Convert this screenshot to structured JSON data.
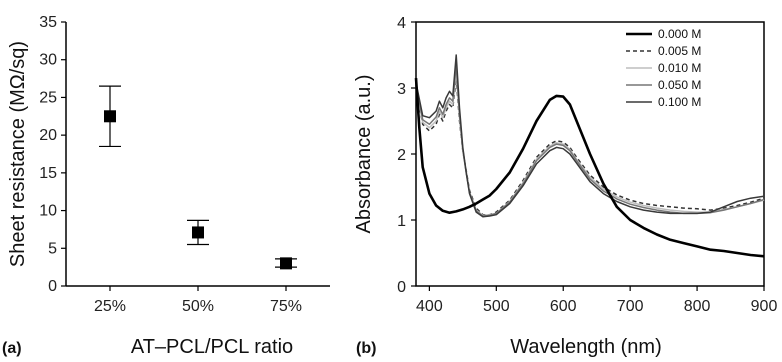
{
  "chart_data": [
    {
      "type": "scatter",
      "panel_label": "(a)",
      "xlabel": "AT–PCL/PCL ratio",
      "ylabel": "Sheet resistance (MΩ/sq)",
      "categories": [
        "25%",
        "50%",
        "75%"
      ],
      "values": [
        22.5,
        7.1,
        3.0
      ],
      "error_low": [
        18.5,
        5.5,
        2.5
      ],
      "error_high": [
        26.5,
        8.7,
        3.6
      ],
      "ylim": [
        0,
        35
      ],
      "yticks": [
        0,
        5,
        10,
        15,
        20,
        25,
        30,
        35
      ],
      "grid": false,
      "marker": "filled-square",
      "color": "#000000"
    },
    {
      "type": "line",
      "panel_label": "(b)",
      "xlabel": "Wavelength (nm)",
      "ylabel": "Absorbance (a.u.)",
      "xlim": [
        380,
        900
      ],
      "ylim": [
        0,
        4
      ],
      "xticks": [
        400,
        500,
        600,
        700,
        800,
        900
      ],
      "yticks": [
        0,
        1,
        2,
        3,
        4
      ],
      "grid": false,
      "legend_position": "top-right",
      "series": [
        {
          "name": "0.000 M",
          "color": "#000000",
          "style": "solid-thick",
          "x": [
            380,
            385,
            390,
            400,
            410,
            420,
            430,
            440,
            450,
            460,
            470,
            480,
            490,
            500,
            520,
            540,
            560,
            580,
            590,
            600,
            610,
            620,
            640,
            660,
            680,
            700,
            720,
            740,
            760,
            780,
            800,
            820,
            840,
            860,
            880,
            900
          ],
          "y": [
            3.15,
            2.4,
            1.8,
            1.4,
            1.22,
            1.14,
            1.11,
            1.13,
            1.16,
            1.2,
            1.25,
            1.31,
            1.37,
            1.47,
            1.72,
            2.08,
            2.5,
            2.82,
            2.88,
            2.87,
            2.75,
            2.5,
            2.0,
            1.55,
            1.2,
            1.0,
            0.88,
            0.78,
            0.7,
            0.65,
            0.6,
            0.55,
            0.53,
            0.5,
            0.47,
            0.45
          ]
        },
        {
          "name": "0.005 M",
          "color": "#333333",
          "style": "dashed",
          "x": [
            380,
            390,
            400,
            410,
            415,
            420,
            425,
            430,
            435,
            440,
            445,
            450,
            455,
            460,
            470,
            480,
            490,
            500,
            520,
            540,
            560,
            580,
            590,
            600,
            610,
            620,
            640,
            660,
            680,
            700,
            720,
            740,
            760,
            780,
            800,
            820,
            840,
            860,
            880,
            900
          ],
          "y": [
            3.0,
            2.45,
            2.35,
            2.45,
            2.6,
            2.5,
            2.65,
            2.75,
            2.7,
            3.15,
            2.5,
            2.05,
            1.75,
            1.45,
            1.18,
            1.08,
            1.08,
            1.12,
            1.3,
            1.6,
            1.95,
            2.15,
            2.2,
            2.18,
            2.1,
            1.95,
            1.68,
            1.5,
            1.38,
            1.3,
            1.25,
            1.22,
            1.2,
            1.18,
            1.17,
            1.15,
            1.18,
            1.22,
            1.27,
            1.33
          ]
        },
        {
          "name": "0.010 M",
          "color": "#bdbdbd",
          "style": "solid",
          "x": [
            380,
            390,
            400,
            410,
            415,
            420,
            425,
            430,
            435,
            440,
            445,
            450,
            455,
            460,
            470,
            480,
            490,
            500,
            520,
            540,
            560,
            580,
            590,
            600,
            610,
            620,
            640,
            660,
            680,
            700,
            720,
            740,
            760,
            780,
            800,
            820,
            840,
            860,
            880,
            900
          ],
          "y": [
            3.02,
            2.48,
            2.4,
            2.5,
            2.65,
            2.55,
            2.7,
            2.8,
            2.75,
            3.25,
            2.55,
            2.05,
            1.72,
            1.42,
            1.15,
            1.07,
            1.08,
            1.1,
            1.28,
            1.57,
            1.92,
            2.12,
            2.17,
            2.15,
            2.07,
            1.92,
            1.65,
            1.47,
            1.35,
            1.27,
            1.22,
            1.18,
            1.15,
            1.13,
            1.12,
            1.12,
            1.16,
            1.2,
            1.25,
            1.3
          ]
        },
        {
          "name": "0.050 M",
          "color": "#777777",
          "style": "solid",
          "x": [
            380,
            390,
            400,
            410,
            415,
            420,
            425,
            430,
            435,
            440,
            445,
            450,
            455,
            460,
            470,
            480,
            490,
            500,
            520,
            540,
            560,
            580,
            590,
            600,
            610,
            620,
            640,
            660,
            680,
            700,
            720,
            740,
            760,
            780,
            800,
            820,
            840,
            860,
            880,
            900
          ],
          "y": [
            3.05,
            2.52,
            2.45,
            2.56,
            2.7,
            2.6,
            2.75,
            2.85,
            2.8,
            3.35,
            2.6,
            2.07,
            1.72,
            1.42,
            1.14,
            1.06,
            1.07,
            1.1,
            1.27,
            1.55,
            1.9,
            2.1,
            2.15,
            2.13,
            2.05,
            1.9,
            1.62,
            1.44,
            1.32,
            1.24,
            1.19,
            1.15,
            1.12,
            1.1,
            1.1,
            1.11,
            1.15,
            1.2,
            1.25,
            1.31
          ]
        },
        {
          "name": "0.100 M",
          "color": "#3a3a3a",
          "style": "solid",
          "x": [
            380,
            390,
            400,
            410,
            415,
            420,
            425,
            430,
            435,
            440,
            445,
            450,
            455,
            460,
            470,
            480,
            490,
            500,
            520,
            540,
            560,
            580,
            590,
            600,
            610,
            620,
            640,
            660,
            680,
            700,
            720,
            740,
            760,
            780,
            800,
            820,
            840,
            860,
            880,
            900
          ],
          "y": [
            3.08,
            2.58,
            2.55,
            2.65,
            2.8,
            2.7,
            2.85,
            2.95,
            2.88,
            3.5,
            2.7,
            2.1,
            1.72,
            1.4,
            1.12,
            1.05,
            1.06,
            1.08,
            1.25,
            1.52,
            1.85,
            2.05,
            2.1,
            2.08,
            2.0,
            1.86,
            1.58,
            1.4,
            1.28,
            1.2,
            1.15,
            1.12,
            1.1,
            1.1,
            1.1,
            1.12,
            1.2,
            1.28,
            1.33,
            1.36
          ]
        }
      ]
    }
  ]
}
